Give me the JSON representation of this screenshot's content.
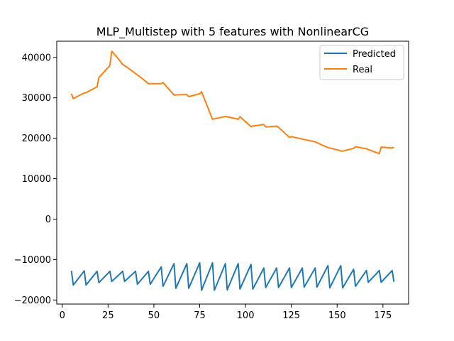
{
  "chart_data": {
    "type": "line",
    "title": "MLP_Multistep with 5 features with NonlinearCG",
    "xlabel": "",
    "ylabel": "",
    "xlim": [
      -3,
      189
    ],
    "ylim": [
      -21000,
      44000
    ],
    "xticks": [
      0,
      25,
      50,
      75,
      100,
      125,
      150,
      175
    ],
    "xtick_labels": [
      "0",
      "25",
      "50",
      "75",
      "100",
      "125",
      "150",
      "175"
    ],
    "yticks": [
      -20000,
      -10000,
      0,
      10000,
      20000,
      30000,
      40000
    ],
    "ytick_labels": [
      "−20000",
      "−10000",
      "0",
      "10000",
      "20000",
      "30000",
      "40000"
    ],
    "grid": false,
    "legend": "top-right",
    "series": [
      {
        "name": "Predicted",
        "color": "#1f77b4",
        "x": [
          5,
          6,
          12,
          13,
          19,
          20,
          26,
          27,
          33,
          34,
          40,
          41,
          47,
          48,
          54,
          55,
          61,
          62,
          68,
          69,
          75,
          76,
          82,
          83,
          89,
          90,
          96,
          97,
          103,
          104,
          110,
          111,
          117,
          118,
          124,
          125,
          131,
          132,
          138,
          139,
          145,
          146,
          152,
          153,
          159,
          160,
          166,
          167,
          173,
          174,
          180,
          181
        ],
        "y": [
          -12800,
          -16300,
          -12800,
          -16300,
          -12900,
          -15700,
          -12900,
          -15400,
          -12900,
          -15400,
          -12900,
          -16100,
          -12900,
          -16100,
          -11800,
          -16600,
          -11000,
          -17100,
          -11000,
          -17100,
          -10800,
          -17600,
          -10800,
          -17600,
          -11000,
          -17500,
          -11000,
          -17300,
          -11200,
          -17300,
          -12100,
          -16900,
          -12100,
          -16900,
          -12100,
          -16900,
          -12100,
          -16800,
          -12100,
          -16800,
          -11500,
          -17000,
          -11500,
          -17000,
          -12400,
          -16600,
          -12700,
          -15600,
          -12700,
          -15600,
          -12700,
          -15500
        ]
      },
      {
        "name": "Real",
        "color": "#ff7f0e",
        "x": [
          5,
          6,
          9,
          11,
          13,
          16,
          19,
          20,
          24,
          26,
          27,
          30,
          33,
          34,
          37,
          40,
          43,
          47,
          54,
          55,
          61,
          68,
          69,
          75,
          76,
          82,
          83,
          89,
          90,
          96,
          97,
          103,
          104,
          110,
          111,
          117,
          118,
          124,
          125,
          131,
          132,
          138,
          139,
          145,
          146,
          152,
          153,
          159,
          160,
          166,
          167,
          173,
          174,
          180,
          181
        ],
        "y": [
          31000,
          29800,
          30500,
          31000,
          31300,
          32000,
          32700,
          35000,
          37000,
          38000,
          41500,
          40000,
          38200,
          38000,
          37000,
          36000,
          35000,
          33500,
          33500,
          33800,
          30700,
          30800,
          30300,
          31000,
          31500,
          24700,
          24800,
          25400,
          25300,
          24700,
          25300,
          22900,
          23000,
          23400,
          22800,
          23000,
          22700,
          20200,
          20400,
          19800,
          19700,
          19100,
          18900,
          17700,
          17600,
          16900,
          16800,
          17500,
          17900,
          17400,
          17200,
          16200,
          17800,
          17600,
          17800
        ]
      }
    ]
  }
}
